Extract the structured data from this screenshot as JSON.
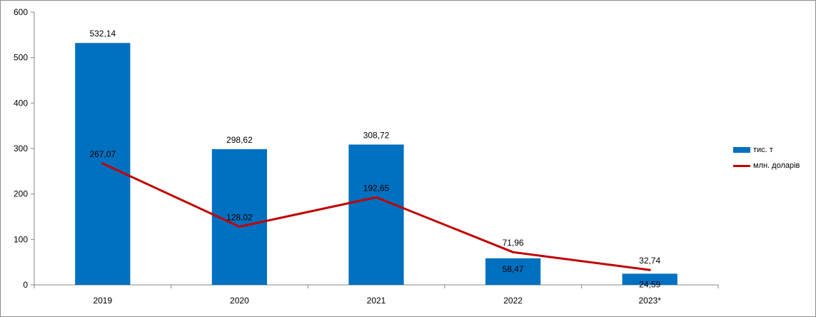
{
  "chart_data": {
    "type": "bar",
    "categories": [
      "2019",
      "2020",
      "2021",
      "2022",
      "2023*"
    ],
    "series": [
      {
        "name": "тис. т",
        "type": "bar",
        "values": [
          532.14,
          298.62,
          308.72,
          58.47,
          24.59
        ],
        "labels": [
          "532,14",
          "298,62",
          "308,72",
          "58,47",
          "24,59"
        ],
        "color": "#0070C0"
      },
      {
        "name": "млн. доларів",
        "type": "line",
        "values": [
          267.07,
          128.02,
          192.65,
          71.96,
          32.74
        ],
        "labels": [
          "267,07",
          "128,02",
          "192,65",
          "71,96",
          "32,74"
        ],
        "color": "#C00000"
      }
    ],
    "ylim": [
      0,
      600
    ],
    "yticks": [
      0,
      100,
      200,
      300,
      400,
      500,
      600
    ],
    "ytick_labels": [
      "0",
      "100",
      "200",
      "300",
      "400",
      "500",
      "600"
    ],
    "legend_position": "right",
    "grid": false
  }
}
